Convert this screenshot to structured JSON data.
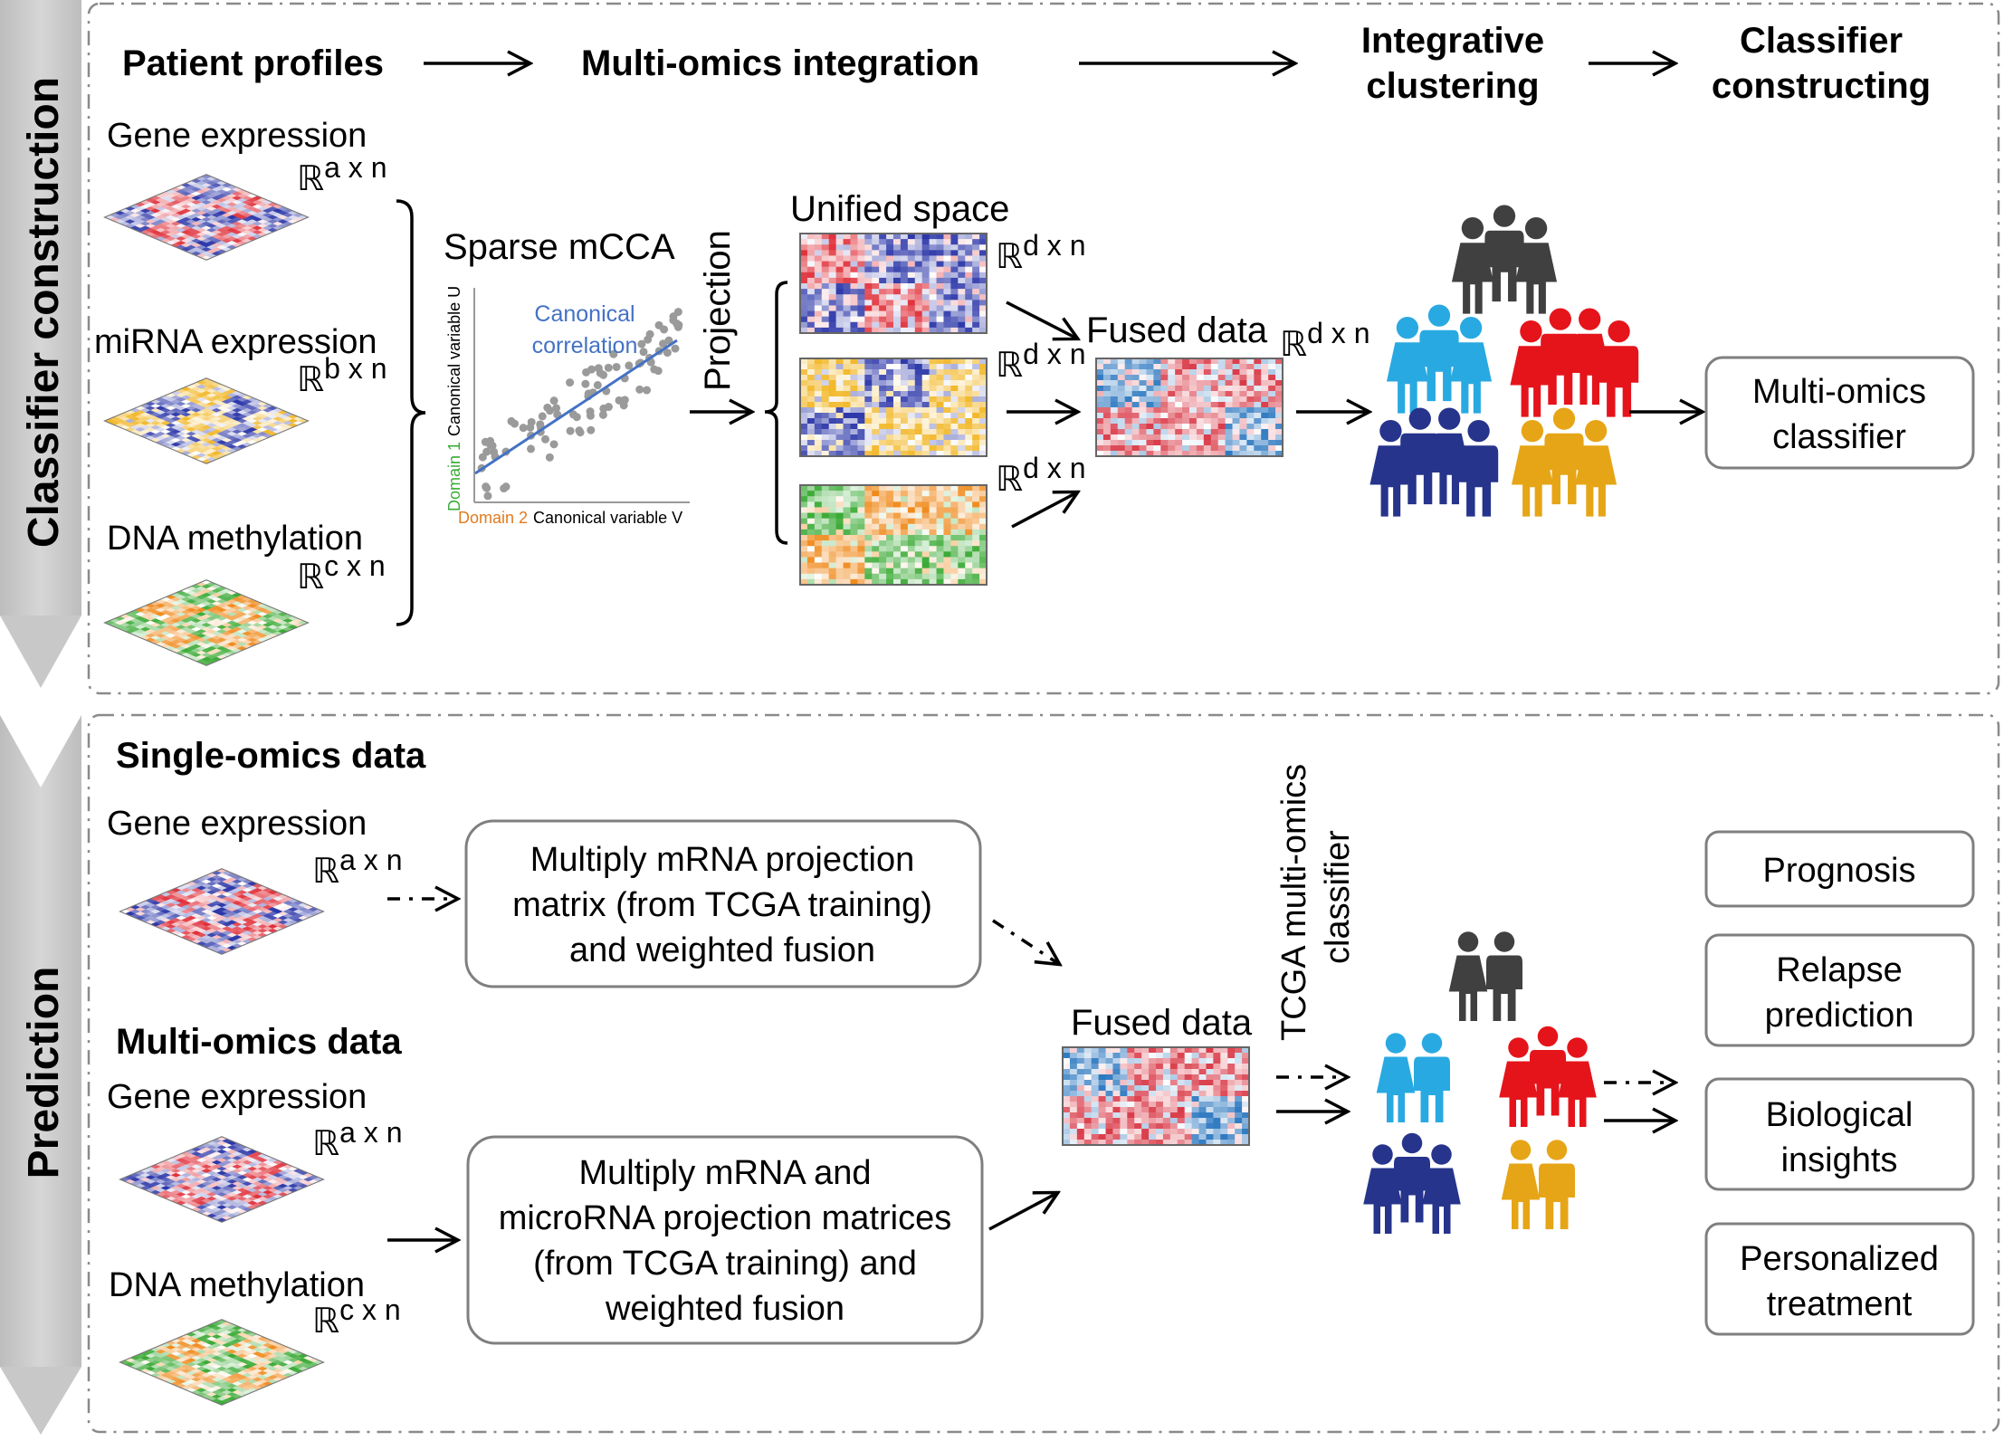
{
  "sections": {
    "construction": "Classifier construction",
    "prediction": "Prediction"
  },
  "pipeline": {
    "patient_profiles": "Patient profiles",
    "integration": "Multi-omics integration",
    "clustering": [
      "Integrative",
      "clustering"
    ],
    "classifier": [
      "Classifier",
      "constructing"
    ]
  },
  "omics": {
    "gene": "Gene expression",
    "mirna": "miRNA expression",
    "dna": "DNA methylation",
    "dim_a": "a x n",
    "dim_b": "b x n",
    "dim_c": "c x n",
    "dim_d": "d x n",
    "real": "ℝ"
  },
  "cca": {
    "title": "Sparse mCCA",
    "canonical": [
      "Canonical",
      "correlation"
    ],
    "y_domain": "Domain 1",
    "y_var": "Canonical variable U",
    "x_domain": "Domain 2",
    "x_var": "Canonical variable V"
  },
  "projection": "Projection",
  "unified_space": "Unified space",
  "fused_data": "Fused data",
  "multiomics_classifier": [
    "Multi-omics",
    "classifier"
  ],
  "prediction": {
    "single": "Single-omics data",
    "multi": "Multi-omics data",
    "box1": [
      "Multiply mRNA projection",
      "matrix (from TCGA training)",
      "and weighted fusion"
    ],
    "box2": [
      "Multiply mRNA and",
      "microRNA projection matrices",
      "(from TCGA training) and",
      "weighted fusion"
    ],
    "tcga": [
      "TCGA multi-omics",
      "classifier"
    ],
    "outcomes": [
      "Prognosis",
      [
        "Relapse",
        "prediction"
      ],
      [
        "Biological",
        "insights"
      ],
      [
        "Personalized",
        "treatment"
      ]
    ]
  },
  "colors": {
    "cluster_gray": "#404040",
    "cluster_cyan": "#29a9e1",
    "cluster_red": "#e5141b",
    "cluster_navy": "#26348c",
    "cluster_gold": "#e6a516",
    "domain1": "#3aaa35",
    "domain2": "#e07b1e",
    "canonical_line": "#4472c4"
  }
}
